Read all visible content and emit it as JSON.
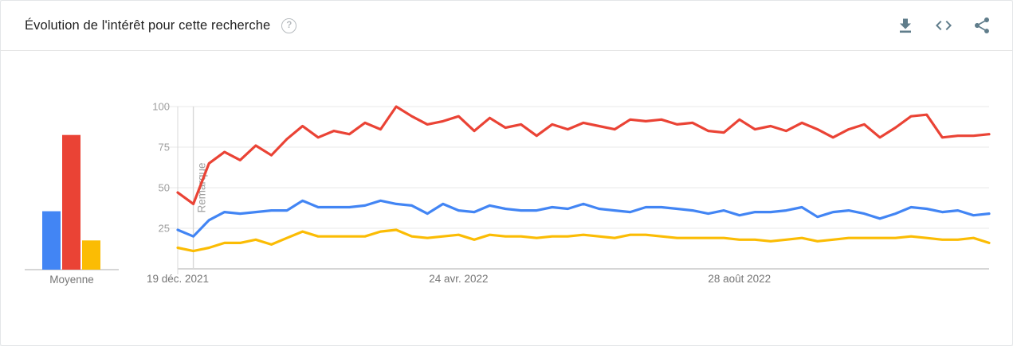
{
  "header": {
    "title": "Évolution de l'intérêt pour cette recherche",
    "help_label": "?",
    "actions": [
      {
        "id": "download",
        "icon": "download-icon"
      },
      {
        "id": "embed",
        "icon": "embed-code-icon"
      },
      {
        "id": "share",
        "icon": "share-icon"
      }
    ]
  },
  "colors": {
    "series_blue": "#4285f4",
    "series_red": "#ea4335",
    "series_yellow": "#fbbc04",
    "icon": "#607d8b",
    "grid": "#e9e9e9",
    "baseline": "#bdbdbd",
    "axis_line": "#d8d8d8",
    "y_label": "#9e9e9e",
    "x_label": "#757575",
    "annotation_text": "#9e9e9e"
  },
  "chart_data": [
    {
      "type": "line",
      "title": "Évolution de l'intérêt pour cette recherche",
      "x_unit": "week",
      "ylim": [
        0,
        100
      ],
      "yticks": [
        25,
        50,
        75,
        100
      ],
      "grid": true,
      "legend_position": "none",
      "x_ticks": [
        {
          "label": "19 déc. 2021",
          "week_index": 0
        },
        {
          "label": "24 avr. 2022",
          "week_index": 18
        },
        {
          "label": "28 août 2022",
          "week_index": 36
        }
      ],
      "annotation": {
        "label": "Remarque",
        "week_index": 1
      },
      "series": [
        {
          "name": "blue",
          "color": "#4285f4",
          "values": [
            24,
            20,
            30,
            35,
            34,
            35,
            36,
            36,
            42,
            38,
            38,
            38,
            39,
            42,
            40,
            39,
            34,
            40,
            36,
            35,
            39,
            37,
            36,
            36,
            38,
            37,
            40,
            37,
            36,
            35,
            38,
            38,
            37,
            36,
            34,
            36,
            33,
            35,
            35,
            36,
            38,
            32,
            35,
            36,
            34,
            31,
            34,
            38,
            37,
            35,
            36,
            33,
            34
          ]
        },
        {
          "name": "red",
          "color": "#ea4335",
          "values": [
            47,
            40,
            65,
            72,
            67,
            76,
            70,
            80,
            88,
            81,
            85,
            83,
            90,
            86,
            100,
            94,
            89,
            91,
            94,
            85,
            93,
            87,
            89,
            82,
            89,
            86,
            90,
            88,
            86,
            92,
            91,
            92,
            89,
            90,
            85,
            84,
            92,
            86,
            88,
            85,
            90,
            86,
            81,
            86,
            89,
            81,
            87,
            94,
            95,
            81,
            82,
            82,
            83
          ]
        },
        {
          "name": "yellow",
          "color": "#fbbc04",
          "values": [
            13,
            11,
            13,
            16,
            16,
            18,
            15,
            19,
            23,
            20,
            20,
            20,
            20,
            23,
            24,
            20,
            19,
            20,
            21,
            18,
            21,
            20,
            20,
            19,
            20,
            20,
            21,
            20,
            19,
            21,
            21,
            20,
            19,
            19,
            19,
            19,
            18,
            18,
            17,
            18,
            19,
            17,
            18,
            19,
            19,
            19,
            19,
            20,
            19,
            18,
            18,
            19,
            16
          ]
        }
      ]
    },
    {
      "type": "bar",
      "xlabel": "Moyenne",
      "categories": [
        "blue",
        "red",
        "yellow"
      ],
      "values": [
        36,
        83,
        18
      ],
      "colors": [
        "#4285f4",
        "#ea4335",
        "#fbbc04"
      ],
      "ylim": [
        0,
        100
      ]
    }
  ]
}
